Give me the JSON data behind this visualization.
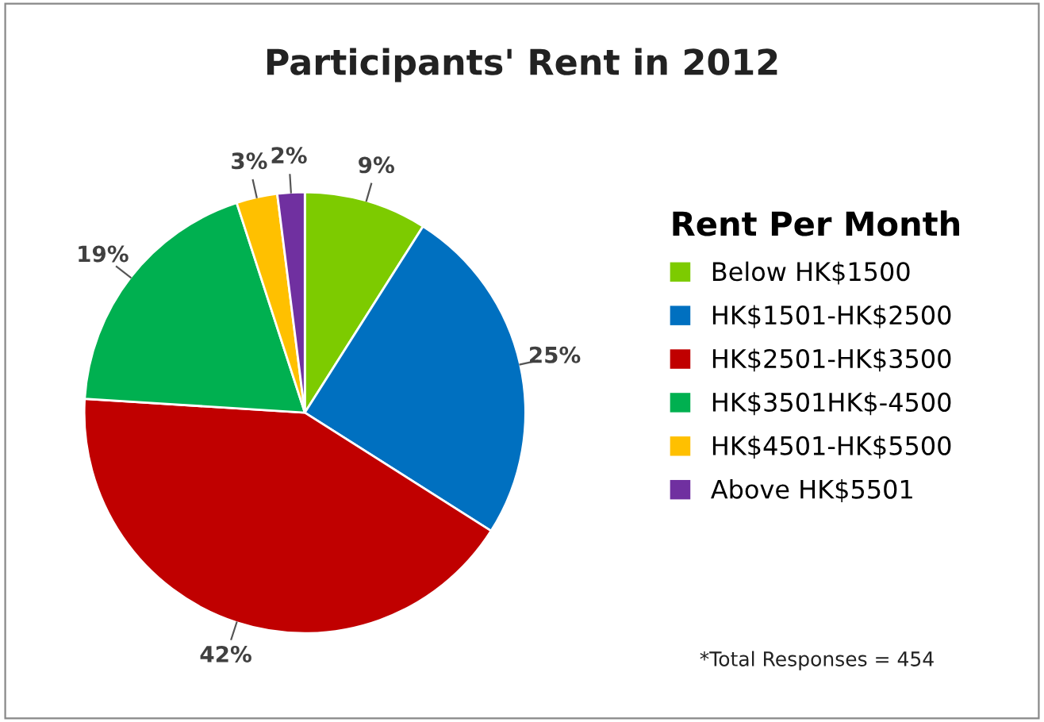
{
  "chart_data": {
    "type": "pie",
    "title": "Participants' Rent in 2012",
    "categories": [
      "Below HK$1500",
      "HK$1501-HK$2500",
      "HK$2501-HK$3500",
      "HK$3501HK$-4500",
      "HK$4501-HK$5500",
      "Above HK$5501"
    ],
    "values": [
      9,
      25,
      42,
      19,
      3,
      2
    ],
    "value_labels": [
      "9%",
      "25%",
      "42%",
      "19%",
      "3%",
      "2%"
    ],
    "colors": [
      "#7dcb00",
      "#0070c0",
      "#c00000",
      "#00b050",
      "#ffc000",
      "#7030a0"
    ],
    "legend_title": "Rent Per Month",
    "legend": "right",
    "annotations": [
      "*Total Responses = 454"
    ]
  }
}
